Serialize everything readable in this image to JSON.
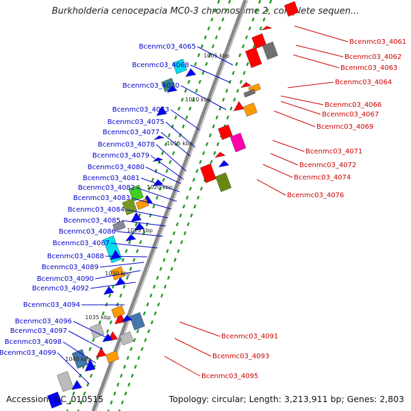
{
  "title": "Burkholderia cenocepacia MC0-3 chromosome 2, complete sequen...",
  "accession_text": "Accession: NC_010515",
  "summary_text": "Topology: circular; Length: 3,213,911 bp; Genes: 2,803",
  "colors": {
    "backbone": "#888888",
    "forward_label": "#cc0000",
    "reverse_label": "#0000cc",
    "gc_dash": "#229922"
  },
  "ticks": [
    "1005 kbp",
    "1010 kbp",
    "1015 kbp",
    "1020 kbp",
    "1025 kbp",
    "1030 kbp",
    "1035 kbp",
    "1040 kbp"
  ],
  "right_labels": [
    "Bcenmc03_4061",
    "Bcenmc03_4062",
    "Bcenmc03_4063",
    "Bcenmc03_4064",
    "Bcenmc03_4066",
    "Bcenmc03_4067",
    "Bcenmc03_4069",
    "Bcenmc03_4071",
    "Bcenmc03_4072",
    "Bcenmc03_4074",
    "Bcenmc03_4076",
    "Bcenmc03_4091",
    "Bcenmc03_4093",
    "Bcenmc03_4095"
  ],
  "left_labels": [
    "Bcenmc03_4065",
    "Bcenmc03_4068",
    "Bcenmc03_4070",
    "Bcenmc03_4073",
    "Bcenmc03_4075",
    "Bcenmc03_4077",
    "Bcenmc03_4078",
    "Bcenmc03_4079",
    "Bcenmc03_4080",
    "Bcenmc03_4081",
    "Bcenmc03_4082",
    "Bcenmc03_4083",
    "Bcenmc03_4084",
    "Bcenmc03_4085",
    "Bcenmc03_4086",
    "Bcenmc03_4087",
    "Bcenmc03_4088",
    "Bcenmc03_4089",
    "Bcenmc03_4090",
    "Bcenmc03_4092",
    "Bcenmc03_4094",
    "Bcenmc03_4096",
    "Bcenmc03_4097",
    "Bcenmc03_4098",
    "Bcenmc03_4099"
  ]
}
